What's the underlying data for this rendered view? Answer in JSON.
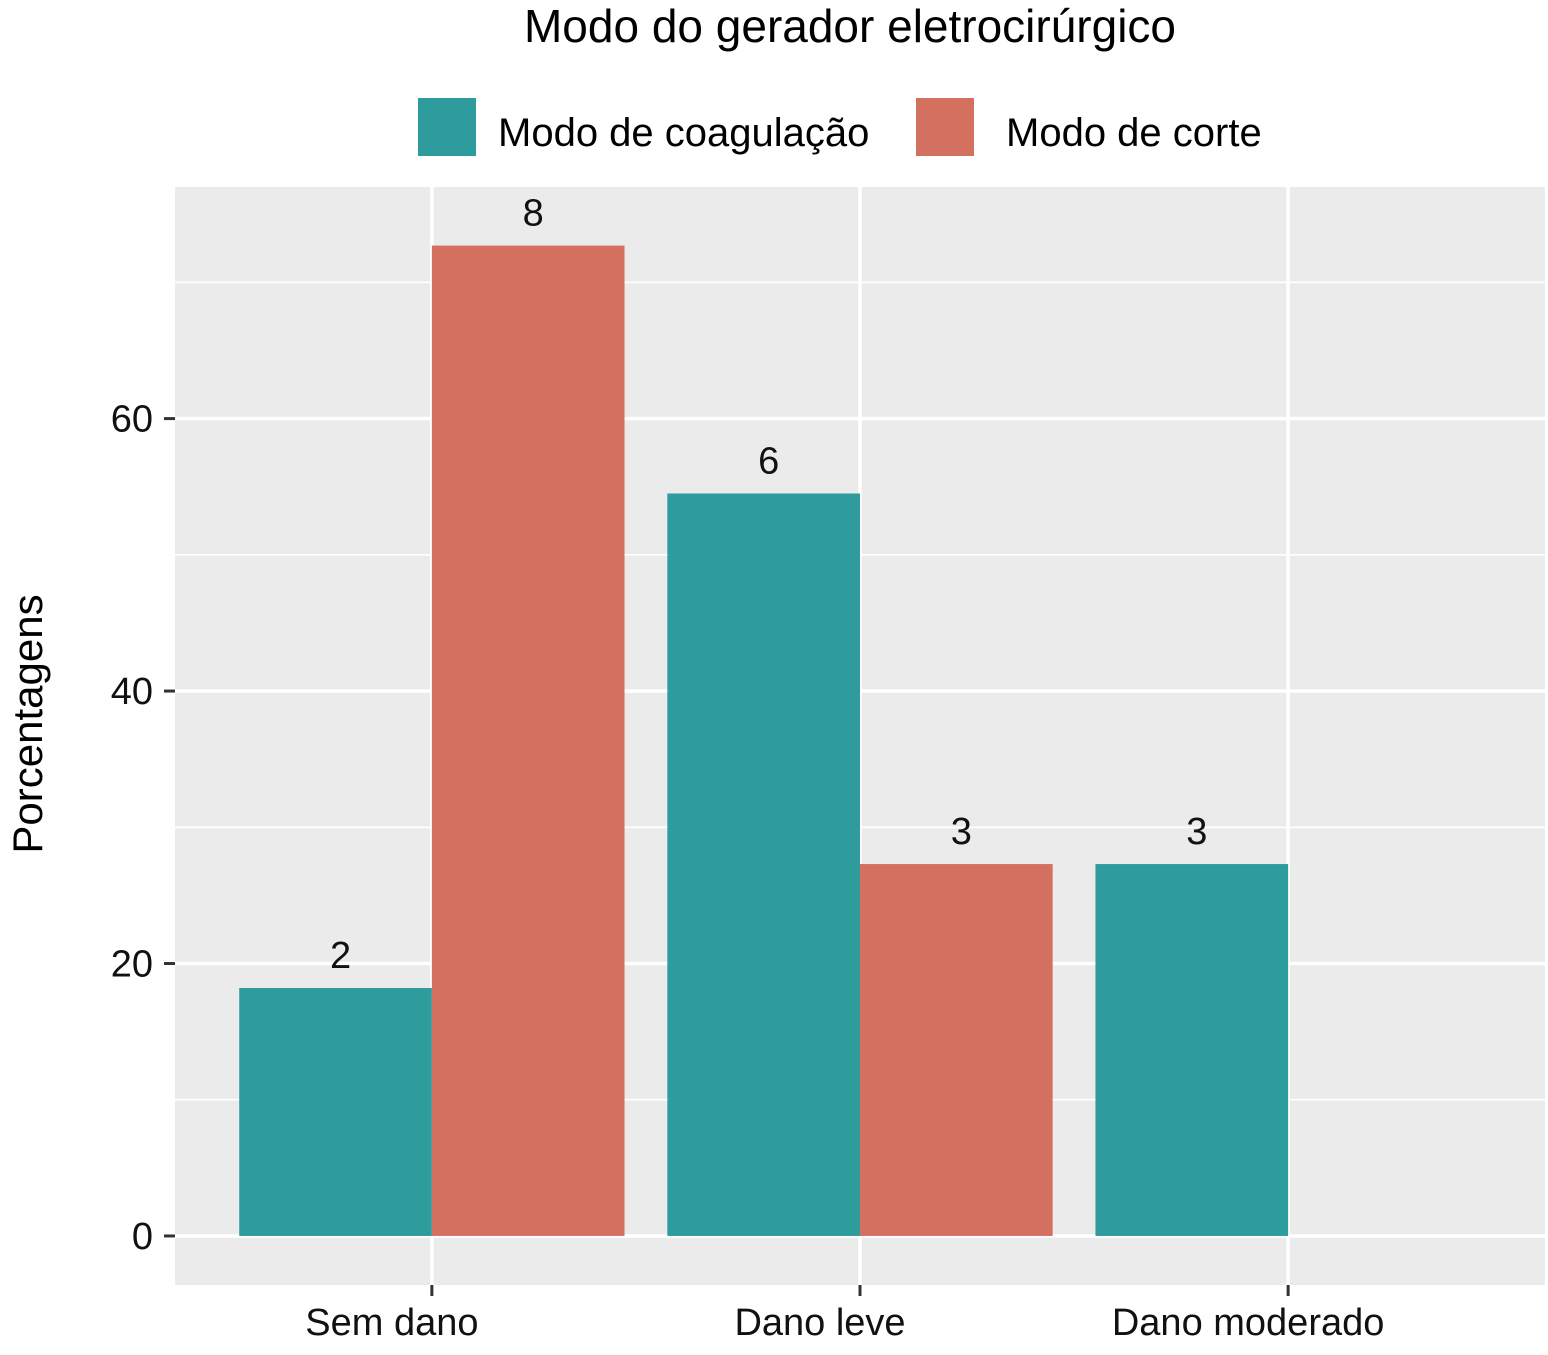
{
  "chart_data": {
    "type": "bar",
    "title": "Modo do gerador eletrocirúrgico",
    "xlabel": "",
    "ylabel": "Porcentagens",
    "categories": [
      "Sem dano",
      "Dano leve",
      "Dano moderado"
    ],
    "series": [
      {
        "name": "Modo de coagulação",
        "color": "#2e9b9c",
        "values": [
          18.2,
          54.5,
          27.3
        ],
        "labels": [
          "2",
          "6",
          "3"
        ]
      },
      {
        "name": "Modo de corte",
        "color": "#d4705f",
        "values": [
          72.7,
          27.3,
          null
        ],
        "labels": [
          "8",
          "3",
          ""
        ]
      }
    ],
    "ylim": [
      -3.6,
      77
    ],
    "yticks": [
      0,
      20,
      40,
      60
    ],
    "ytick_labels": [
      "0",
      "20",
      "40",
      "60"
    ],
    "grid": true,
    "legend_position": "top",
    "panel_color": "#ebebeb",
    "grid_color": "#ffffff"
  }
}
